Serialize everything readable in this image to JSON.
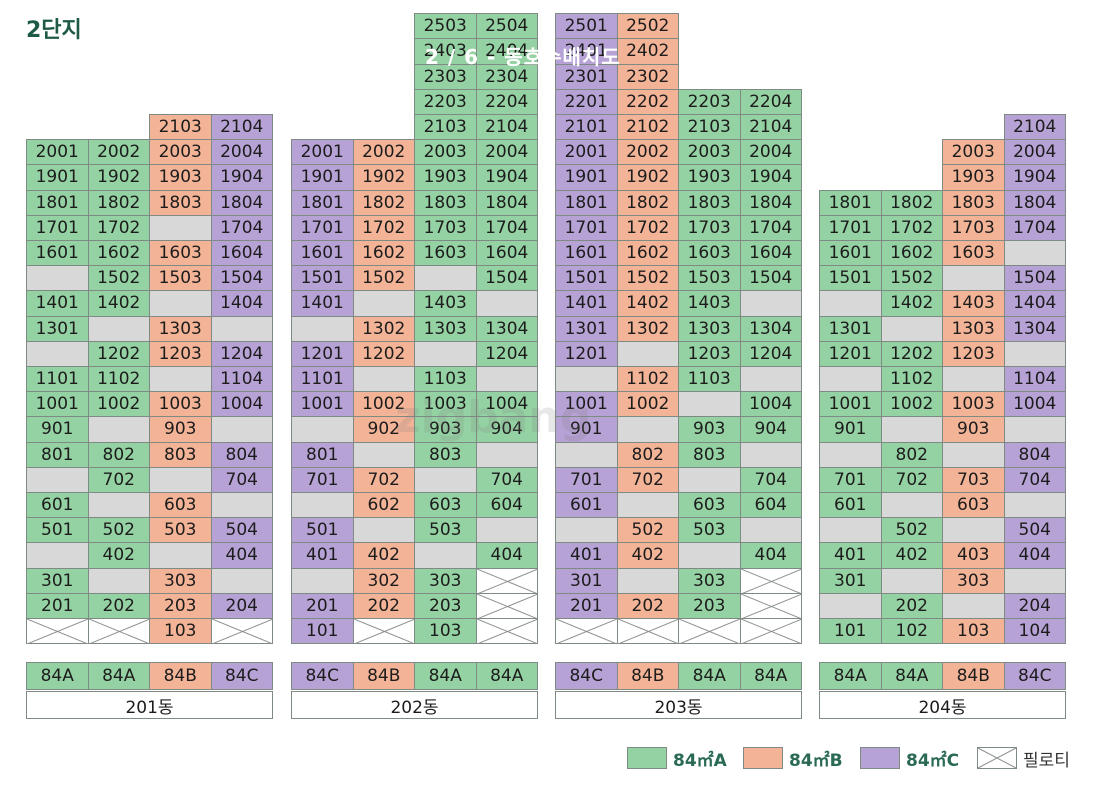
{
  "title": "2단지",
  "caption": "2 / 6 - 동호수배치도",
  "watermark": "zigbang",
  "colors": {
    "A": "#95d2a3",
    "B": "#f3b396",
    "C": "#b7a2d6",
    "empty": "#d8d8d8"
  },
  "legend": [
    {
      "type": "A",
      "label": "84㎡A"
    },
    {
      "type": "B",
      "label": "84㎡B"
    },
    {
      "type": "C",
      "label": "84㎡C"
    },
    {
      "type": "P",
      "label": "필로티"
    }
  ],
  "buildings": [
    {
      "name": "201동",
      "types": [
        "84A",
        "84A",
        "84B",
        "84C"
      ],
      "floors": [
        [
          "",
          "",
          "2103:B",
          "2104:C"
        ],
        [
          "2001:A",
          "2002:A",
          "2003:B",
          "2004:C"
        ],
        [
          "1901:A",
          "1902:A",
          "1903:B",
          "1904:C"
        ],
        [
          "1801:A",
          "1802:A",
          "1803:B",
          "1804:C"
        ],
        [
          "1701:A",
          "1702:A",
          "E",
          "1704:C"
        ],
        [
          "1601:A",
          "1602:A",
          "1603:B",
          "1604:C"
        ],
        [
          "E",
          "1502:A",
          "1503:B",
          "1504:C"
        ],
        [
          "1401:A",
          "1402:A",
          "E",
          "1404:C"
        ],
        [
          "1301:A",
          "E",
          "1303:B",
          "E"
        ],
        [
          "E",
          "1202:A",
          "1203:B",
          "1204:C"
        ],
        [
          "1101:A",
          "1102:A",
          "E",
          "1104:C"
        ],
        [
          "1001:A",
          "1002:A",
          "1003:B",
          "1004:C"
        ],
        [
          "901:A",
          "E",
          "903:B",
          "E"
        ],
        [
          "801:A",
          "802:A",
          "803:B",
          "804:C"
        ],
        [
          "E",
          "702:A",
          "E",
          "704:C"
        ],
        [
          "601:A",
          "E",
          "603:B",
          "E"
        ],
        [
          "501:A",
          "502:A",
          "503:B",
          "504:C"
        ],
        [
          "E",
          "402:A",
          "E",
          "404:C"
        ],
        [
          "301:A",
          "E",
          "303:B",
          "E"
        ],
        [
          "201:A",
          "202:A",
          "203:B",
          "204:C"
        ],
        [
          "P",
          "P",
          "103:B",
          "P"
        ]
      ]
    },
    {
      "name": "202동",
      "types": [
        "84C",
        "84B",
        "84A",
        "84A"
      ],
      "floors": [
        [
          "",
          "",
          "2503:A",
          "2504:A"
        ],
        [
          "",
          "",
          "2403:A",
          "2404:A"
        ],
        [
          "",
          "",
          "2303:A",
          "2304:A"
        ],
        [
          "",
          "",
          "2203:A",
          "2204:A"
        ],
        [
          "",
          "",
          "2103:A",
          "2104:A"
        ],
        [
          "2001:C",
          "2002:B",
          "2003:A",
          "2004:A"
        ],
        [
          "1901:C",
          "1902:B",
          "1903:A",
          "1904:A"
        ],
        [
          "1801:C",
          "1802:B",
          "1803:A",
          "1804:A"
        ],
        [
          "1701:C",
          "1702:B",
          "1703:A",
          "1704:A"
        ],
        [
          "1601:C",
          "1602:B",
          "1603:A",
          "1604:A"
        ],
        [
          "1501:C",
          "1502:B",
          "E",
          "1504:A"
        ],
        [
          "1401:C",
          "E",
          "1403:A",
          "E"
        ],
        [
          "E",
          "1302:B",
          "1303:A",
          "1304:A"
        ],
        [
          "1201:C",
          "1202:B",
          "E",
          "1204:A"
        ],
        [
          "1101:C",
          "E",
          "1103:A",
          "E"
        ],
        [
          "1001:C",
          "1002:B",
          "1003:A",
          "1004:A"
        ],
        [
          "E",
          "902:B",
          "903:A",
          "904:A"
        ],
        [
          "801:C",
          "E",
          "803:A",
          "E"
        ],
        [
          "701:C",
          "702:B",
          "E",
          "704:A"
        ],
        [
          "E",
          "602:B",
          "603:A",
          "604:A"
        ],
        [
          "501:C",
          "E",
          "503:A",
          "E"
        ],
        [
          "401:C",
          "402:B",
          "E",
          "404:A"
        ],
        [
          "E",
          "302:B",
          "303:A",
          "P"
        ],
        [
          "201:C",
          "202:B",
          "203:A",
          "P"
        ],
        [
          "101:C",
          "P",
          "103:A",
          "P"
        ]
      ]
    },
    {
      "name": "203동",
      "types": [
        "84C",
        "84B",
        "84A",
        "84A"
      ],
      "floors": [
        [
          "2501:C",
          "2502:B",
          "",
          ""
        ],
        [
          "2401:C",
          "2402:B",
          "",
          ""
        ],
        [
          "2301:C",
          "2302:B",
          "",
          ""
        ],
        [
          "2201:C",
          "2202:B",
          "2203:A",
          "2204:A"
        ],
        [
          "2101:C",
          "2102:B",
          "2103:A",
          "2104:A"
        ],
        [
          "2001:C",
          "2002:B",
          "2003:A",
          "2004:A"
        ],
        [
          "1901:C",
          "1902:B",
          "1903:A",
          "1904:A"
        ],
        [
          "1801:C",
          "1802:B",
          "1803:A",
          "1804:A"
        ],
        [
          "1701:C",
          "1702:B",
          "1703:A",
          "1704:A"
        ],
        [
          "1601:C",
          "1602:B",
          "1603:A",
          "1604:A"
        ],
        [
          "1501:C",
          "1502:B",
          "1503:A",
          "1504:A"
        ],
        [
          "1401:C",
          "1402:B",
          "1403:A",
          "E"
        ],
        [
          "1301:C",
          "1302:B",
          "1303:A",
          "1304:A"
        ],
        [
          "1201:C",
          "E",
          "1203:A",
          "1204:A"
        ],
        [
          "E",
          "1102:B",
          "1103:A",
          "E"
        ],
        [
          "1001:C",
          "1002:B",
          "E",
          "1004:A"
        ],
        [
          "901:C",
          "E",
          "903:A",
          "904:A"
        ],
        [
          "E",
          "802:B",
          "803:A",
          "E"
        ],
        [
          "701:C",
          "702:B",
          "E",
          "704:A"
        ],
        [
          "601:C",
          "E",
          "603:A",
          "604:A"
        ],
        [
          "E",
          "502:B",
          "503:A",
          "E"
        ],
        [
          "401:C",
          "402:B",
          "E",
          "404:A"
        ],
        [
          "301:C",
          "E",
          "303:A",
          "P"
        ],
        [
          "201:C",
          "202:B",
          "203:A",
          "P"
        ],
        [
          "P",
          "P",
          "P",
          "P"
        ]
      ]
    },
    {
      "name": "204동",
      "types": [
        "84A",
        "84A",
        "84B",
        "84C"
      ],
      "floors": [
        [
          "",
          "",
          "",
          "2104:C"
        ],
        [
          "",
          "",
          "2003:B",
          "2004:C"
        ],
        [
          "",
          "",
          "1903:B",
          "1904:C"
        ],
        [
          "1801:A",
          "1802:A",
          "1803:B",
          "1804:C"
        ],
        [
          "1701:A",
          "1702:A",
          "1703:B",
          "1704:C"
        ],
        [
          "1601:A",
          "1602:A",
          "1603:B",
          "E"
        ],
        [
          "1501:A",
          "1502:A",
          "E",
          "1504:C"
        ],
        [
          "E",
          "1402:A",
          "1403:B",
          "1404:C"
        ],
        [
          "1301:A",
          "E",
          "1303:B",
          "1304:C"
        ],
        [
          "1201:A",
          "1202:A",
          "1203:B",
          "E"
        ],
        [
          "E",
          "1102:A",
          "E",
          "1104:C"
        ],
        [
          "1001:A",
          "1002:A",
          "1003:B",
          "1004:C"
        ],
        [
          "901:A",
          "E",
          "903:B",
          "E"
        ],
        [
          "E",
          "802:A",
          "E",
          "804:C"
        ],
        [
          "701:A",
          "702:A",
          "703:B",
          "704:C"
        ],
        [
          "601:A",
          "E",
          "603:B",
          "E"
        ],
        [
          "E",
          "502:A",
          "E",
          "504:C"
        ],
        [
          "401:A",
          "402:A",
          "403:B",
          "404:C"
        ],
        [
          "301:A",
          "E",
          "303:B",
          "E"
        ],
        [
          "E",
          "202:A",
          "E",
          "204:C"
        ],
        [
          "101:A",
          "102:A",
          "103:B",
          "104:C"
        ]
      ]
    }
  ]
}
